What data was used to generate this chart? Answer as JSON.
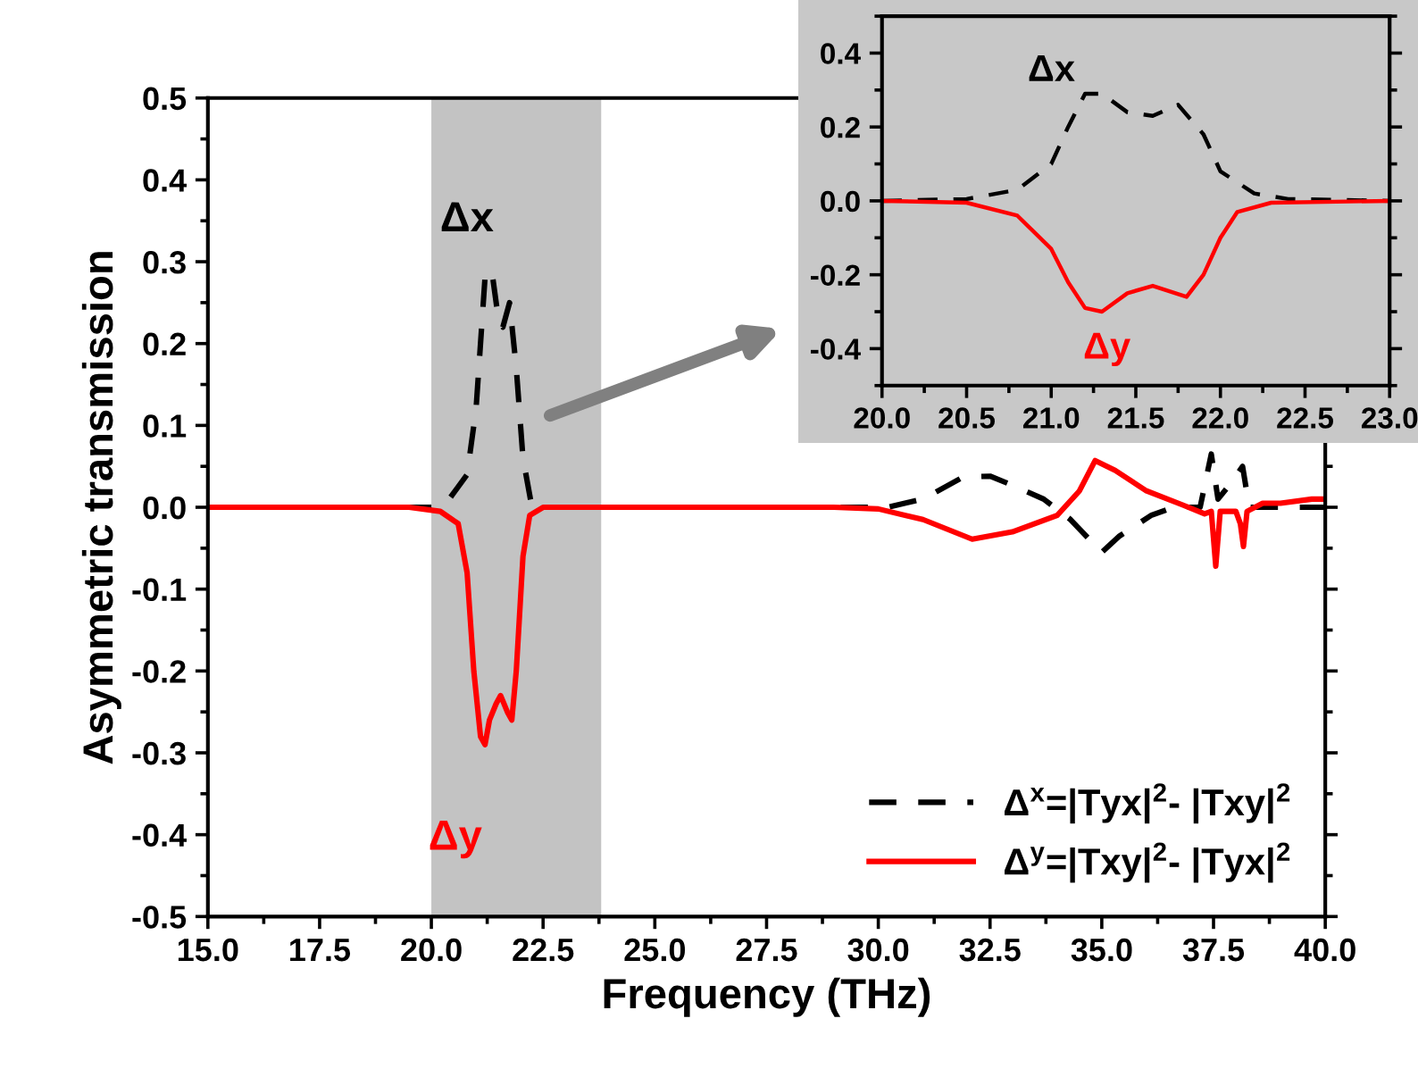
{
  "chart_data": [
    {
      "type": "line",
      "xlabel": "Frequency (THz)",
      "ylabel": "Asymmetric transmission",
      "xlim": [
        15,
        40
      ],
      "xticks": [
        {
          "value": 15,
          "label": "15.0"
        },
        {
          "value": 17.5,
          "label": "17.5"
        },
        {
          "value": 20,
          "label": "20.0"
        },
        {
          "value": 22.5,
          "label": "22.5"
        },
        {
          "value": 25,
          "label": "25.0"
        },
        {
          "value": 27.5,
          "label": "27.5"
        },
        {
          "value": 30,
          "label": "30.0"
        },
        {
          "value": 32.5,
          "label": "32.5"
        },
        {
          "value": 35,
          "label": "35.0"
        },
        {
          "value": 37.5,
          "label": "37.5"
        },
        {
          "value": 40,
          "label": "40.0"
        }
      ],
      "ylim": [
        -0.5,
        0.5
      ],
      "yticks": [
        {
          "value": -0.5,
          "label": "-0.5"
        },
        {
          "value": -0.4,
          "label": "-0.4"
        },
        {
          "value": -0.3,
          "label": "-0.3"
        },
        {
          "value": -0.2,
          "label": "-0.2"
        },
        {
          "value": -0.1,
          "label": "-0.1"
        },
        {
          "value": 0,
          "label": "0.0"
        },
        {
          "value": 0.1,
          "label": "0.1"
        },
        {
          "value": 0.2,
          "label": "0.2"
        },
        {
          "value": 0.3,
          "label": "0.3"
        },
        {
          "value": 0.4,
          "label": "0.4"
        },
        {
          "value": 0.5,
          "label": "0.5"
        }
      ],
      "bands": [
        {
          "axis": "x",
          "from": 20,
          "to": 23.8,
          "color": "#c3c3c3"
        }
      ],
      "legend": "bottom right",
      "grid": false,
      "annotations": [
        {
          "text": "Δx",
          "x": 21.35,
          "y": 0.29
        },
        {
          "text": "Δy",
          "x": 21.2,
          "y": -0.29
        }
      ],
      "series": [
        {
          "name": "Δ$^{x}$=|Tyx|$^{2}$- |Txy|$^{2}$",
          "color": "#000000",
          "line_style": "dashed",
          "x": [
            15,
            19.5,
            20.0,
            20.4,
            20.8,
            21.0,
            21.2,
            21.35,
            21.5,
            21.6,
            21.75,
            21.9,
            22.05,
            22.25,
            22.6,
            29.5,
            30.2,
            31.0,
            31.9,
            32.5,
            33.0,
            33.7,
            34.3,
            35.0,
            35.4,
            36.1,
            36.6,
            37.2,
            37.45,
            37.6,
            37.9,
            38.15,
            38.3,
            38.6,
            39.0,
            40
          ],
          "values": [
            0,
            0,
            0,
            0.01,
            0.04,
            0.12,
            0.28,
            0.29,
            0.23,
            0.22,
            0.25,
            0.17,
            0.06,
            0.0,
            0,
            0,
            0,
            0.01,
            0.037,
            0.038,
            0.027,
            0.01,
            -0.015,
            -0.055,
            -0.035,
            -0.01,
            0,
            0,
            0.065,
            0.01,
            0.03,
            0.05,
            0.0,
            0,
            0,
            0
          ]
        },
        {
          "name": "Δ$^{y}$=|Txy|$^{2}$- |Tyx|$^{2}$",
          "color": "#ff0000",
          "line_style": "solid",
          "x": [
            15,
            19.5,
            20.2,
            20.6,
            20.8,
            20.95,
            21.1,
            21.2,
            21.3,
            21.45,
            21.55,
            21.7,
            21.8,
            21.9,
            22.05,
            22.2,
            22.5,
            29.0,
            30.0,
            31.0,
            32.1,
            33.0,
            34.0,
            34.5,
            34.85,
            35.3,
            36.0,
            36.8,
            37.3,
            37.45,
            37.55,
            37.65,
            38.0,
            38.1,
            38.17,
            38.25,
            38.6,
            39.0,
            39.7,
            40
          ],
          "values": [
            0,
            0,
            -0.005,
            -0.02,
            -0.08,
            -0.2,
            -0.28,
            -0.29,
            -0.26,
            -0.24,
            -0.23,
            -0.25,
            -0.26,
            -0.2,
            -0.06,
            -0.01,
            0,
            0,
            -0.002,
            -0.015,
            -0.039,
            -0.03,
            -0.01,
            0.02,
            0.057,
            0.045,
            0.02,
            0.003,
            -0.008,
            -0.005,
            -0.072,
            -0.005,
            -0.005,
            -0.02,
            -0.048,
            -0.005,
            0.005,
            0.005,
            0.01,
            0.01
          ]
        }
      ]
    },
    {
      "type": "line",
      "xlim": [
        20,
        23
      ],
      "xticks": [
        {
          "value": 20,
          "label": "20.0"
        },
        {
          "value": 20.5,
          "label": "20.5"
        },
        {
          "value": 21,
          "label": "21.0"
        },
        {
          "value": 21.5,
          "label": "21.5"
        },
        {
          "value": 22,
          "label": "22.0"
        },
        {
          "value": 22.5,
          "label": "22.5"
        },
        {
          "value": 23,
          "label": "23.0"
        }
      ],
      "ylim": [
        -0.5,
        0.5
      ],
      "yticks": [
        {
          "value": -0.4,
          "label": "-0.4"
        },
        {
          "value": -0.2,
          "label": "-0.2"
        },
        {
          "value": 0,
          "label": "0.0"
        },
        {
          "value": 0.2,
          "label": "0.2"
        },
        {
          "value": 0.4,
          "label": "0.4"
        }
      ],
      "grid": false,
      "annotations": [
        {
          "text": "Δx",
          "x": 21.2,
          "y": 0.29
        },
        {
          "text": "Δy",
          "x": 21.3,
          "y": -0.3
        }
      ],
      "series": [
        {
          "color": "#000000",
          "line_style": "dashed",
          "x": [
            20,
            20.5,
            20.8,
            21.0,
            21.1,
            21.2,
            21.3,
            21.45,
            21.6,
            21.75,
            21.9,
            22.0,
            22.2,
            22.4,
            23
          ],
          "values": [
            0,
            0.005,
            0.03,
            0.1,
            0.2,
            0.29,
            0.29,
            0.24,
            0.23,
            0.26,
            0.18,
            0.08,
            0.02,
            0.005,
            0
          ]
        },
        {
          "color": "#ff0000",
          "line_style": "solid",
          "x": [
            20,
            20.5,
            20.8,
            21.0,
            21.1,
            21.2,
            21.3,
            21.45,
            21.6,
            21.8,
            21.9,
            22.0,
            22.1,
            22.3,
            23
          ],
          "values": [
            0,
            -0.005,
            -0.04,
            -0.13,
            -0.22,
            -0.29,
            -0.3,
            -0.25,
            -0.23,
            -0.26,
            -0.2,
            -0.1,
            -0.03,
            -0.005,
            0
          ]
        }
      ]
    }
  ]
}
